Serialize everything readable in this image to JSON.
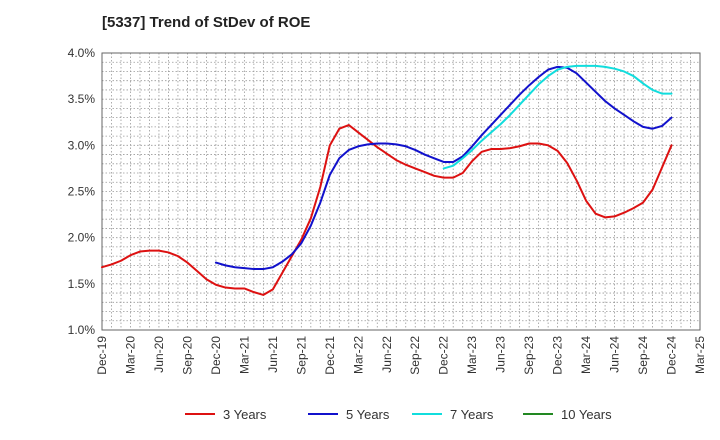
{
  "chart_data": {
    "type": "line",
    "title": "[5337]  Trend of StDev of ROE",
    "xlabel": "",
    "ylabel": "",
    "x_start": "Dec-19",
    "x_end": "Mar-25",
    "x_tick_labels": [
      "Dec-19",
      "Mar-20",
      "Jun-20",
      "Sep-20",
      "Dec-20",
      "Mar-21",
      "Jun-21",
      "Sep-21",
      "Dec-21",
      "Mar-22",
      "Jun-22",
      "Sep-22",
      "Dec-22",
      "Mar-23",
      "Jun-23",
      "Sep-23",
      "Dec-23",
      "Mar-24",
      "Jun-24",
      "Sep-24",
      "Dec-24",
      "Mar-25"
    ],
    "y_tick_labels": [
      "1.0%",
      "1.5%",
      "2.0%",
      "2.5%",
      "3.0%",
      "3.5%",
      "4.0%"
    ],
    "ylim": [
      1.0,
      4.0
    ],
    "y_unit": "%",
    "grid": true,
    "legend_position": "bottom",
    "series": [
      {
        "name": "3 Years",
        "color": "#dd1111",
        "points": [
          [
            "Dec-19",
            1.68
          ],
          [
            "Jan-20",
            1.71
          ],
          [
            "Feb-20",
            1.75
          ],
          [
            "Mar-20",
            1.81
          ],
          [
            "Apr-20",
            1.85
          ],
          [
            "May-20",
            1.86
          ],
          [
            "Jun-20",
            1.86
          ],
          [
            "Jul-20",
            1.84
          ],
          [
            "Aug-20",
            1.8
          ],
          [
            "Sep-20",
            1.73
          ],
          [
            "Oct-20",
            1.64
          ],
          [
            "Nov-20",
            1.55
          ],
          [
            "Dec-20",
            1.49
          ],
          [
            "Jan-21",
            1.46
          ],
          [
            "Feb-21",
            1.45
          ],
          [
            "Mar-21",
            1.45
          ],
          [
            "Apr-21",
            1.41
          ],
          [
            "May-21",
            1.38
          ],
          [
            "Jun-21",
            1.44
          ],
          [
            "Jul-21",
            1.62
          ],
          [
            "Aug-21",
            1.8
          ],
          [
            "Sep-21",
            1.98
          ],
          [
            "Oct-21",
            2.21
          ],
          [
            "Nov-21",
            2.55
          ],
          [
            "Dec-21",
            3.0
          ],
          [
            "Jan-22",
            3.18
          ],
          [
            "Feb-22",
            3.22
          ],
          [
            "Mar-22",
            3.14
          ],
          [
            "Apr-22",
            3.06
          ],
          [
            "May-22",
            2.98
          ],
          [
            "Jun-22",
            2.91
          ],
          [
            "Jul-22",
            2.84
          ],
          [
            "Aug-22",
            2.79
          ],
          [
            "Sep-22",
            2.75
          ],
          [
            "Oct-22",
            2.71
          ],
          [
            "Nov-22",
            2.67
          ],
          [
            "Dec-22",
            2.65
          ],
          [
            "Jan-23",
            2.65
          ],
          [
            "Feb-23",
            2.7
          ],
          [
            "Mar-23",
            2.83
          ],
          [
            "Apr-23",
            2.93
          ],
          [
            "May-23",
            2.96
          ],
          [
            "Jun-23",
            2.96
          ],
          [
            "Jul-23",
            2.97
          ],
          [
            "Aug-23",
            2.99
          ],
          [
            "Sep-23",
            3.02
          ],
          [
            "Oct-23",
            3.02
          ],
          [
            "Nov-23",
            3.0
          ],
          [
            "Dec-23",
            2.94
          ],
          [
            "Jan-24",
            2.81
          ],
          [
            "Feb-24",
            2.62
          ],
          [
            "Mar-24",
            2.4
          ],
          [
            "Apr-24",
            2.26
          ],
          [
            "May-24",
            2.22
          ],
          [
            "Jun-24",
            2.23
          ],
          [
            "Jul-24",
            2.27
          ],
          [
            "Aug-24",
            2.32
          ],
          [
            "Sep-24",
            2.38
          ],
          [
            "Oct-24",
            2.52
          ],
          [
            "Nov-24",
            2.76
          ],
          [
            "Dec-24",
            3.0
          ]
        ]
      },
      {
        "name": "5 Years",
        "color": "#1111cc",
        "points": [
          [
            "Dec-20",
            1.73
          ],
          [
            "Jan-21",
            1.7
          ],
          [
            "Feb-21",
            1.68
          ],
          [
            "Mar-21",
            1.67
          ],
          [
            "Apr-21",
            1.66
          ],
          [
            "May-21",
            1.66
          ],
          [
            "Jun-21",
            1.68
          ],
          [
            "Jul-21",
            1.74
          ],
          [
            "Aug-21",
            1.82
          ],
          [
            "Sep-21",
            1.94
          ],
          [
            "Oct-21",
            2.13
          ],
          [
            "Nov-21",
            2.38
          ],
          [
            "Dec-21",
            2.68
          ],
          [
            "Jan-22",
            2.86
          ],
          [
            "Feb-22",
            2.95
          ],
          [
            "Mar-22",
            2.99
          ],
          [
            "Apr-22",
            3.01
          ],
          [
            "May-22",
            3.02
          ],
          [
            "Jun-22",
            3.02
          ],
          [
            "Jul-22",
            3.01
          ],
          [
            "Aug-22",
            2.99
          ],
          [
            "Sep-22",
            2.95
          ],
          [
            "Oct-22",
            2.9
          ],
          [
            "Nov-22",
            2.86
          ],
          [
            "Dec-22",
            2.82
          ],
          [
            "Jan-23",
            2.82
          ],
          [
            "Feb-23",
            2.88
          ],
          [
            "Mar-23",
            2.99
          ],
          [
            "Apr-23",
            3.11
          ],
          [
            "May-23",
            3.22
          ],
          [
            "Jun-23",
            3.33
          ],
          [
            "Jul-23",
            3.44
          ],
          [
            "Aug-23",
            3.55
          ],
          [
            "Sep-23",
            3.65
          ],
          [
            "Oct-23",
            3.74
          ],
          [
            "Nov-23",
            3.82
          ],
          [
            "Dec-23",
            3.85
          ],
          [
            "Jan-24",
            3.84
          ],
          [
            "Feb-24",
            3.78
          ],
          [
            "Mar-24",
            3.68
          ],
          [
            "Apr-24",
            3.58
          ],
          [
            "May-24",
            3.48
          ],
          [
            "Jun-24",
            3.4
          ],
          [
            "Jul-24",
            3.33
          ],
          [
            "Aug-24",
            3.26
          ],
          [
            "Sep-24",
            3.2
          ],
          [
            "Oct-24",
            3.18
          ],
          [
            "Nov-24",
            3.21
          ],
          [
            "Dec-24",
            3.3
          ]
        ]
      },
      {
        "name": "7 Years",
        "color": "#11dddd",
        "points": [
          [
            "Dec-22",
            2.75
          ],
          [
            "Jan-23",
            2.78
          ],
          [
            "Feb-23",
            2.86
          ],
          [
            "Mar-23",
            2.95
          ],
          [
            "Apr-23",
            3.05
          ],
          [
            "May-23",
            3.14
          ],
          [
            "Jun-23",
            3.23
          ],
          [
            "Jul-23",
            3.33
          ],
          [
            "Aug-23",
            3.44
          ],
          [
            "Sep-23",
            3.55
          ],
          [
            "Oct-23",
            3.66
          ],
          [
            "Nov-23",
            3.75
          ],
          [
            "Dec-23",
            3.82
          ],
          [
            "Jan-24",
            3.85
          ],
          [
            "Feb-24",
            3.86
          ],
          [
            "Mar-24",
            3.86
          ],
          [
            "Apr-24",
            3.86
          ],
          [
            "May-24",
            3.85
          ],
          [
            "Jun-24",
            3.83
          ],
          [
            "Jul-24",
            3.8
          ],
          [
            "Aug-24",
            3.75
          ],
          [
            "Sep-24",
            3.67
          ],
          [
            "Oct-24",
            3.6
          ],
          [
            "Nov-24",
            3.56
          ],
          [
            "Dec-24",
            3.56
          ]
        ]
      },
      {
        "name": "10 Years",
        "color": "#228822",
        "points": []
      }
    ]
  }
}
